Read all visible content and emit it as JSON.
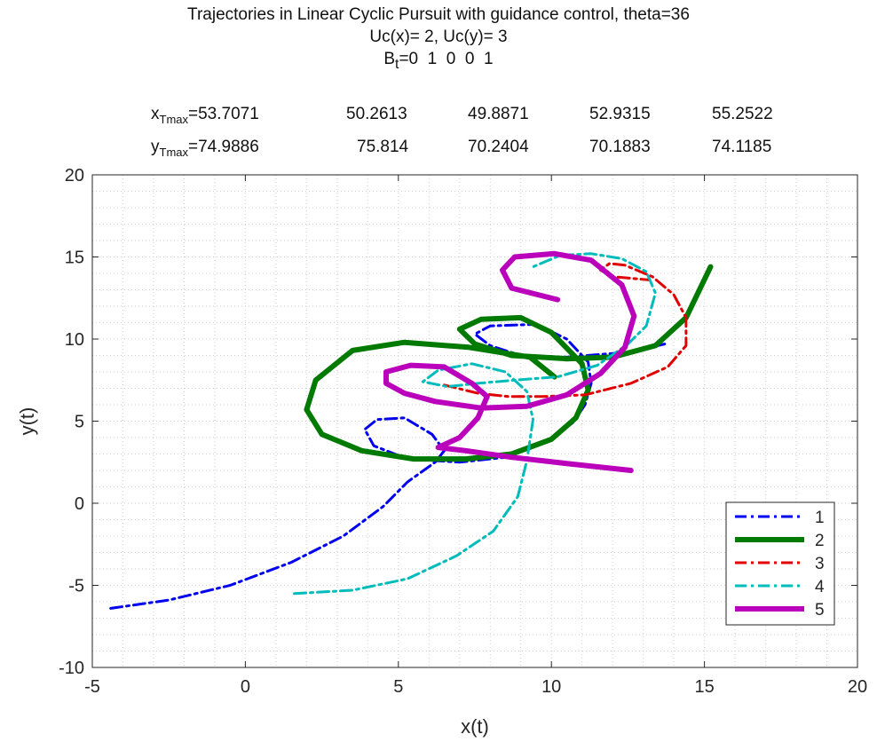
{
  "title_lines": [
    "Trajectories in Linear Cyclic Pursuit with guidance control, theta=36",
    "Uc(x)= 2, Uc(y)= 3"
  ],
  "bt_label": {
    "letter": "B",
    "sub": "t",
    "rest": "=0  1  0  0  1"
  },
  "x_row": {
    "letter": "x",
    "sub": "Tmax",
    "first": "=53.7071",
    "others": [
      "50.2613",
      "49.8871",
      "52.9315",
      "55.2522"
    ]
  },
  "y_row": {
    "letter": "y",
    "sub": "Tmax",
    "first": "=74.9886",
    "others": [
      "75.814",
      "70.2404",
      "70.1883",
      "74.1185"
    ]
  },
  "chart_data": {
    "type": "line",
    "title": "Trajectories in Linear Cyclic Pursuit with guidance control, theta=36",
    "xlabel": "x(t)",
    "ylabel": "y(t)",
    "xlim": [
      -5,
      20
    ],
    "ylim": [
      -10,
      20
    ],
    "xticks": [
      -5,
      0,
      5,
      10,
      15,
      20
    ],
    "yticks": [
      -10,
      -5,
      0,
      5,
      10,
      15,
      20
    ],
    "grid": true,
    "legend_position": "bottom-right",
    "series": [
      {
        "name": "1",
        "color": "#0000ee",
        "style": "dashdot",
        "width": 3,
        "points": [
          [
            -4.4,
            -6.4
          ],
          [
            -2.5,
            -5.9
          ],
          [
            -0.5,
            -5
          ],
          [
            1.5,
            -3.6
          ],
          [
            3.2,
            -2
          ],
          [
            4.5,
            -0.2
          ],
          [
            5.3,
            1.3
          ],
          [
            6.2,
            2.5
          ],
          [
            6.5,
            3.2
          ],
          [
            6.1,
            4.2
          ],
          [
            5.2,
            5.2
          ],
          [
            4.3,
            5.1
          ],
          [
            3.9,
            4.5
          ],
          [
            4.2,
            3.5
          ],
          [
            5.3,
            2.7
          ],
          [
            7,
            2.5
          ],
          [
            8.5,
            2.8
          ],
          [
            9.8,
            3.7
          ],
          [
            10.7,
            4.9
          ],
          [
            11.1,
            6
          ],
          [
            11.3,
            7.3
          ],
          [
            11.2,
            8.6
          ],
          [
            10.5,
            10
          ],
          [
            9.5,
            10.9
          ],
          [
            8,
            10.8
          ],
          [
            7.5,
            10.3
          ],
          [
            8,
            9.6
          ],
          [
            9,
            9
          ],
          [
            10.5,
            8.9
          ],
          [
            12.5,
            9.2
          ],
          [
            13.7,
            9.7
          ]
        ]
      },
      {
        "name": "2",
        "color": "#007a00",
        "style": "solid",
        "width": 6,
        "points": [
          [
            10.1,
            7.7
          ],
          [
            9.3,
            8.9
          ],
          [
            7.3,
            9.5
          ],
          [
            5.2,
            9.8
          ],
          [
            3.5,
            9.3
          ],
          [
            2.3,
            7.5
          ],
          [
            2,
            5.7
          ],
          [
            2.5,
            4.2
          ],
          [
            3.8,
            3.2
          ],
          [
            5.5,
            2.7
          ],
          [
            7.2,
            2.7
          ],
          [
            8.7,
            3
          ],
          [
            10,
            3.9
          ],
          [
            10.8,
            5.2
          ],
          [
            11.2,
            6.9
          ],
          [
            11,
            8.5
          ],
          [
            10,
            10.4
          ],
          [
            9,
            11.3
          ],
          [
            7.7,
            11.2
          ],
          [
            7,
            10.6
          ],
          [
            7.5,
            9.7
          ],
          [
            8.7,
            9
          ],
          [
            10.5,
            8.8
          ],
          [
            12,
            8.9
          ],
          [
            13.4,
            9.6
          ],
          [
            14.4,
            11.3
          ],
          [
            15.2,
            14.4
          ]
        ]
      },
      {
        "name": "3",
        "color": "#e00000",
        "style": "dashdot",
        "width": 3,
        "points": [
          [
            6.5,
            7.2
          ],
          [
            7.6,
            6.7
          ],
          [
            8.6,
            6.5
          ],
          [
            9.7,
            6.5
          ],
          [
            11.1,
            6.6
          ],
          [
            12.6,
            7.3
          ],
          [
            13.8,
            8.3
          ],
          [
            14.4,
            9.6
          ],
          [
            14.4,
            11.3
          ],
          [
            14,
            12.7
          ],
          [
            13.3,
            13.8
          ],
          [
            12.4,
            14.5
          ],
          [
            11.9,
            14.6
          ],
          [
            11.6,
            14.2
          ],
          [
            12,
            13.8
          ],
          [
            13.2,
            13.6
          ]
        ]
      },
      {
        "name": "4",
        "color": "#00bbbb",
        "style": "dashdot",
        "width": 3,
        "points": [
          [
            1.6,
            -5.5
          ],
          [
            3.5,
            -5.3
          ],
          [
            5.3,
            -4.6
          ],
          [
            6.9,
            -3.2
          ],
          [
            8.1,
            -1.7
          ],
          [
            8.9,
            0.4
          ],
          [
            9.2,
            2.6
          ],
          [
            9.4,
            5.1
          ],
          [
            9.2,
            6.8
          ],
          [
            8.5,
            8
          ],
          [
            7.4,
            8.5
          ],
          [
            6.3,
            8.1
          ],
          [
            5.8,
            7.4
          ],
          [
            6.6,
            7.1
          ],
          [
            7.6,
            7.3
          ],
          [
            8.8,
            7.5
          ],
          [
            10.2,
            7.7
          ],
          [
            11.5,
            8.4
          ],
          [
            12.5,
            9.7
          ],
          [
            13.1,
            10.8
          ],
          [
            13.4,
            12.8
          ],
          [
            13.1,
            14.1
          ],
          [
            12.3,
            14.9
          ],
          [
            11.3,
            15.2
          ],
          [
            10.3,
            15.1
          ],
          [
            9.4,
            14.4
          ]
        ]
      },
      {
        "name": "5",
        "color": "#bb00bb",
        "style": "solid",
        "width": 6,
        "points": [
          [
            12.6,
            2
          ],
          [
            10.6,
            2.4
          ],
          [
            8.7,
            2.8
          ],
          [
            7.2,
            3.2
          ],
          [
            6.3,
            3.4
          ],
          [
            7,
            4
          ],
          [
            7.6,
            5.2
          ],
          [
            7.9,
            6.5
          ],
          [
            7.4,
            7.3
          ],
          [
            6.5,
            8.3
          ],
          [
            5.4,
            8.4
          ],
          [
            4.6,
            8
          ],
          [
            4.6,
            7.3
          ],
          [
            5.2,
            6.7
          ],
          [
            6.2,
            6.2
          ],
          [
            7.7,
            5.8
          ],
          [
            9.2,
            5.9
          ],
          [
            10.5,
            6.6
          ],
          [
            11.6,
            7.9
          ],
          [
            12.4,
            9.5
          ],
          [
            12.7,
            11.4
          ],
          [
            12.3,
            13.3
          ],
          [
            11.3,
            14.8
          ],
          [
            10.1,
            15.2
          ],
          [
            8.8,
            15
          ],
          [
            8.4,
            14.2
          ],
          [
            8.7,
            13.1
          ],
          [
            10.2,
            12.4
          ]
        ]
      }
    ]
  }
}
